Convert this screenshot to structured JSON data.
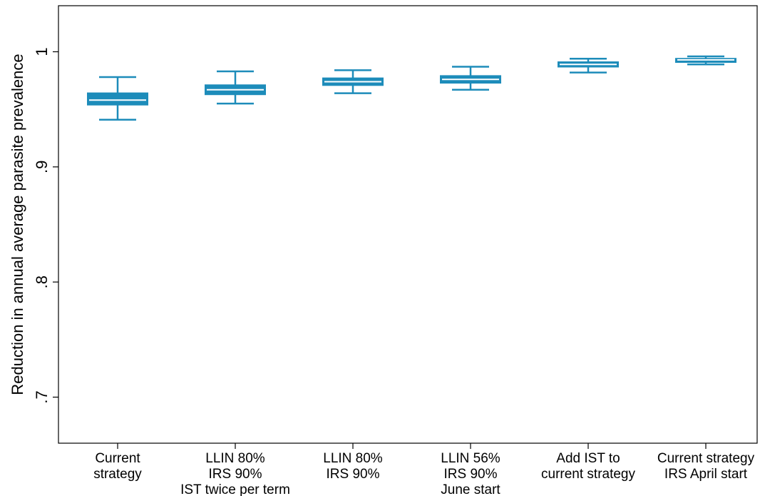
{
  "chart_data": {
    "type": "box",
    "title": "",
    "xlabel": "",
    "ylabel": "Reduction in annual average parasite prevalence",
    "ylim": [
      0.66,
      1.04
    ],
    "yticks": [
      {
        "value": 0.7,
        "label": ".7"
      },
      {
        "value": 0.8,
        "label": ".8"
      },
      {
        "value": 0.9,
        "label": ".9"
      },
      {
        "value": 1.0,
        "label": "1"
      }
    ],
    "grid": false,
    "legend": "none",
    "box_color": "#1d8cba",
    "median_color": "#ffffff",
    "categories": [
      {
        "lines": [
          "Current",
          "strategy"
        ],
        "stats": {
          "min": 0.941,
          "q1": 0.954,
          "median": 0.958,
          "q3": 0.964,
          "max": 0.978
        }
      },
      {
        "lines": [
          "LLIN 80%",
          "IRS 90%",
          "IST twice per term"
        ],
        "stats": {
          "min": 0.955,
          "q1": 0.963,
          "median": 0.967,
          "q3": 0.971,
          "max": 0.983
        }
      },
      {
        "lines": [
          "LLIN 80%",
          "IRS 90%"
        ],
        "stats": {
          "min": 0.964,
          "q1": 0.971,
          "median": 0.974,
          "q3": 0.977,
          "max": 0.984
        }
      },
      {
        "lines": [
          "LLIN 56%",
          "IRS 90%",
          "June start"
        ],
        "stats": {
          "min": 0.967,
          "q1": 0.973,
          "median": 0.976,
          "q3": 0.979,
          "max": 0.987
        }
      },
      {
        "lines": [
          "Add IST to",
          "current strategy"
        ],
        "stats": {
          "min": 0.982,
          "q1": 0.987,
          "median": 0.989,
          "q3": 0.991,
          "max": 0.994
        }
      },
      {
        "lines": [
          "Current strategy",
          "IRS April start"
        ],
        "stats": {
          "min": 0.989,
          "q1": 0.991,
          "median": 0.993,
          "q3": 0.994,
          "max": 0.996
        }
      }
    ]
  }
}
